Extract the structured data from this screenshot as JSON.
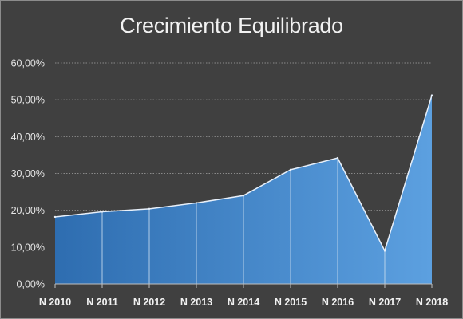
{
  "chart_data": {
    "type": "area",
    "title": "Crecimiento Equilibrado",
    "categories": [
      "N 2010",
      "N 2011",
      "N 2012",
      "N 2013",
      "N 2014",
      "N 2015",
      "N 2016",
      "N 2017",
      "N 2018"
    ],
    "series": [
      {
        "values": [
          18.2,
          19.6,
          20.4,
          22.0,
          24.0,
          31.0,
          34.2,
          9.0,
          51.2
        ]
      }
    ],
    "yticks": [
      "0,00%",
      "10,00%",
      "20,00%",
      "30,00%",
      "40,00%",
      "50,00%",
      "60,00%"
    ],
    "ylim": [
      0,
      60
    ],
    "y_unit": "%",
    "grid": true,
    "legend": false
  },
  "colors": {
    "background": "#404040",
    "area_dark": "#2e6db0",
    "area_light": "#5ca0e0",
    "top_line": "#e8f0fa",
    "separator": "#c9dcef",
    "gridline": "#8a8a8a",
    "axis": "#bfbfbf",
    "text": "#f2f2f2"
  }
}
